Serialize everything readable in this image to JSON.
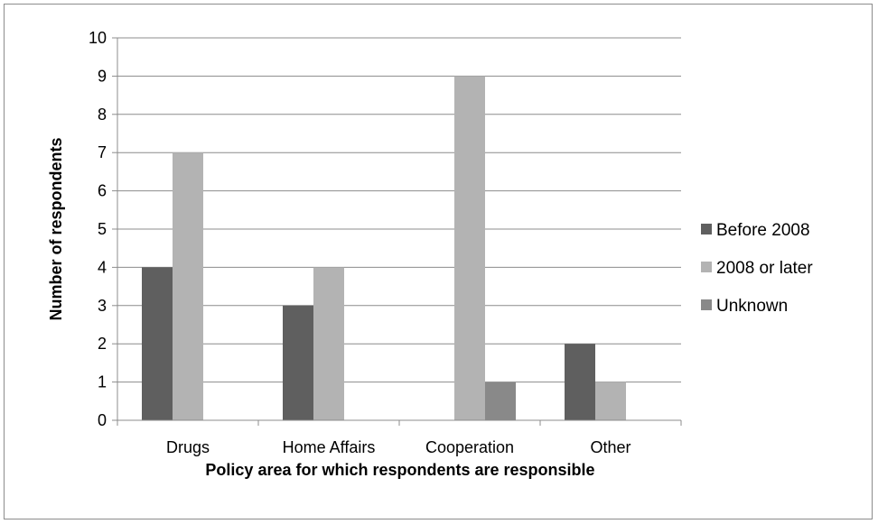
{
  "chart_data": {
    "type": "bar",
    "title": "",
    "xlabel": "Policy area for which respondents are responsible",
    "ylabel": "Number of respondents",
    "ylim": [
      0,
      10
    ],
    "yticks": [
      0,
      1,
      2,
      3,
      4,
      5,
      6,
      7,
      8,
      9,
      10
    ],
    "grid": true,
    "legend_position": "right",
    "categories": [
      "Drugs",
      "Home Affairs",
      "Cooperation",
      "Other"
    ],
    "series": [
      {
        "name": "Before 2008",
        "color": "#5f5f5f",
        "values": [
          4,
          3,
          0,
          2
        ]
      },
      {
        "name": "2008 or later",
        "color": "#b3b3b3",
        "values": [
          7,
          4,
          9,
          1
        ]
      },
      {
        "name": "Unknown",
        "color": "#898989",
        "values": [
          0,
          0,
          1,
          0
        ]
      }
    ]
  }
}
